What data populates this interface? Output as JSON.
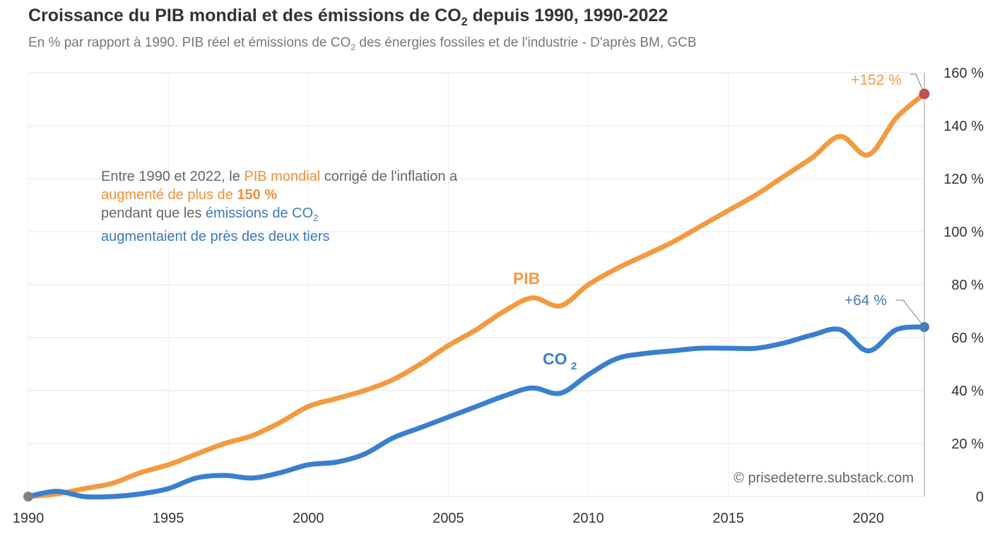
{
  "title": {
    "main": "Croissance du PIB mondial et des émissions de CO",
    "sub": "2",
    "tail": " depuis 1990, 1990-2022"
  },
  "subtitle": {
    "main": "En % par rapport à 1990. PIB réel et émissions de CO",
    "sub": "2",
    "tail": " des énergies fossiles et de l'industrie - D'après BM, GCB"
  },
  "note": {
    "p1": "Entre 1990 et 2022, le ",
    "p2": "PIB mondial",
    "p3": " corrigé de l'inflation a ",
    "p4": "augmenté de plus de ",
    "p5": "150 %",
    "p6": " pendant que les ",
    "p7": "émissions de CO",
    "p7sub": "2",
    "p8": " augmentaient de près des deux tiers"
  },
  "credit": "© prisedeterre.substack.com",
  "colors": {
    "pib": "#f39a40",
    "co2": "#3a7fcf",
    "pib_end": "#c0504d",
    "co2_end": "#4a7ab8",
    "start": "#808080"
  },
  "chart_data": {
    "type": "line",
    "title": "Croissance du PIB mondial et des émissions de CO2 depuis 1990, 1990-2022",
    "xlim": [
      1990,
      2022
    ],
    "ylim": [
      0,
      160
    ],
    "x_ticks": [
      "1990",
      "1995",
      "2000",
      "2005",
      "2010",
      "2015",
      "2020"
    ],
    "x_tick_values": [
      1990,
      1995,
      2000,
      2005,
      2010,
      2015,
      2020
    ],
    "y_ticks": [
      "0",
      "20 %",
      "40 %",
      "60 %",
      "80 %",
      "100 %",
      "120 %",
      "140 %",
      "160 %"
    ],
    "y_tick_values": [
      0,
      20,
      40,
      60,
      80,
      100,
      120,
      140,
      160
    ],
    "y_axis_side": "right",
    "grid": true,
    "x": [
      1990,
      1991,
      1992,
      1993,
      1994,
      1995,
      1996,
      1997,
      1998,
      1999,
      2000,
      2001,
      2002,
      2003,
      2004,
      2005,
      2006,
      2007,
      2008,
      2009,
      2010,
      2011,
      2012,
      2013,
      2014,
      2015,
      2016,
      2017,
      2018,
      2019,
      2020,
      2021,
      2022
    ],
    "series": [
      {
        "name": "PIB",
        "label": "PIB",
        "values": [
          0,
          1,
          3,
          5,
          9,
          12,
          16,
          20,
          23,
          28,
          34,
          37,
          40,
          44,
          50,
          57,
          63,
          70,
          75,
          72,
          80,
          86,
          91,
          96,
          102,
          108,
          114,
          121,
          128,
          136,
          129,
          143,
          152
        ]
      },
      {
        "name": "CO2",
        "label": "CO",
        "label_sub": "2",
        "values": [
          0,
          2,
          0,
          0,
          1,
          3,
          7,
          8,
          7,
          9,
          12,
          13,
          16,
          22,
          26,
          30,
          34,
          38,
          41,
          39,
          46,
          52,
          54,
          55,
          56,
          56,
          56,
          58,
          61,
          63,
          55,
          63,
          64
        ]
      }
    ],
    "annotations": {
      "pib_end": "+152 %",
      "co2_end": "+64 %"
    }
  }
}
